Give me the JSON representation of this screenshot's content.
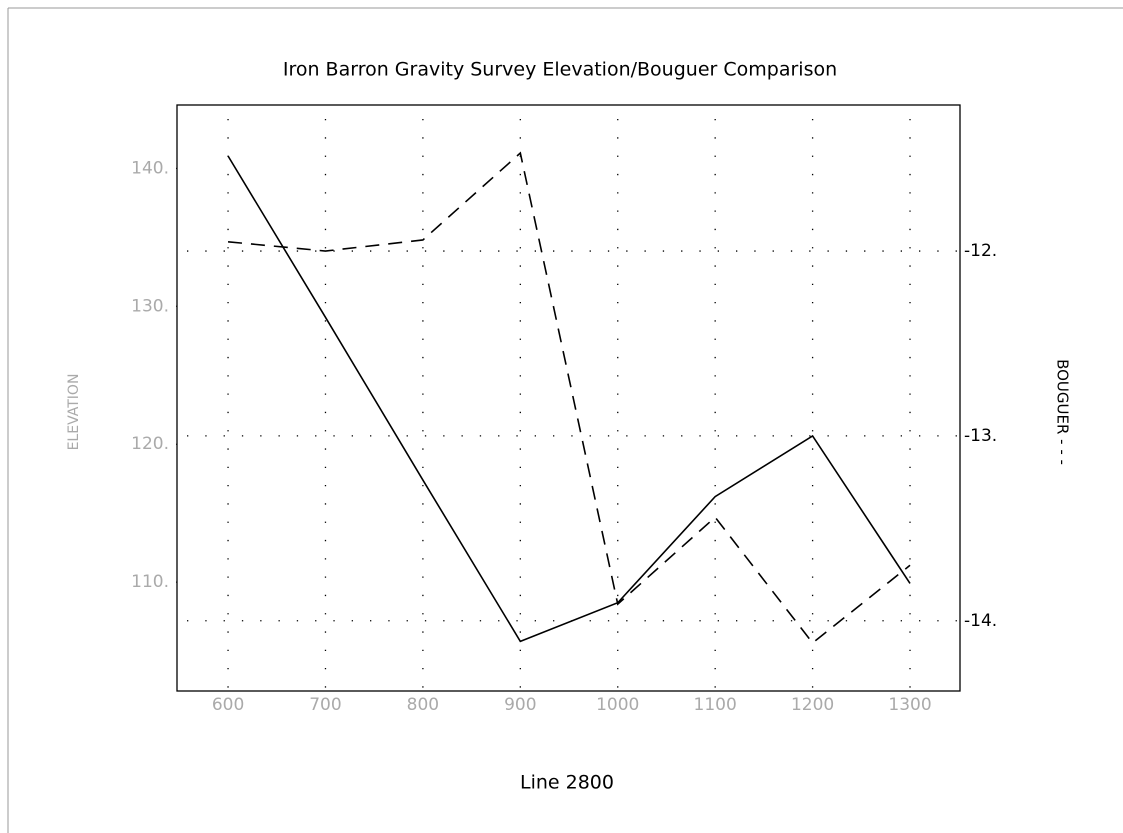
{
  "chart_data": {
    "type": "line",
    "title": "Iron Barron Gravity Survey Elevation/Bouguer Comparison",
    "x_label": "Line 2800",
    "y_label": "ELEVATION",
    "y2_label": "BOUGUER - - -",
    "x": [
      600,
      700,
      800,
      900,
      1000,
      1100,
      1200,
      1300
    ],
    "series": [
      {
        "color": "#000000",
        "dash": false,
        "values": [
          140.9,
          129.2,
          117.4,
          105.7,
          108.5,
          116.2,
          120.6,
          109.9
        ]
      },
      {
        "color": "#000000",
        "dash": true,
        "axis": "y2",
        "values": [
          -11.95,
          -12.0,
          -11.94,
          -11.47,
          -13.91,
          -13.44,
          -14.12,
          -13.7
        ]
      }
    ],
    "xlim": [
      547.6,
      1351.3
    ],
    "xticks": [
      600,
      700,
      800,
      900,
      1000,
      1100,
      1200,
      1300
    ],
    "ylim": [
      102.1,
      144.6
    ],
    "yticks": [
      {
        "value": 110,
        "label": "110."
      },
      {
        "value": 120,
        "label": "120."
      },
      {
        "value": 130,
        "label": "130."
      },
      {
        "value": 140,
        "label": "140."
      }
    ],
    "y2lim": [
      -14.38,
      -11.21
    ],
    "y2ticks": [
      {
        "value": -14,
        "label": "-14."
      },
      {
        "value": -13,
        "label": "-13."
      },
      {
        "value": -12,
        "label": "-12."
      }
    ],
    "grid": true
  }
}
